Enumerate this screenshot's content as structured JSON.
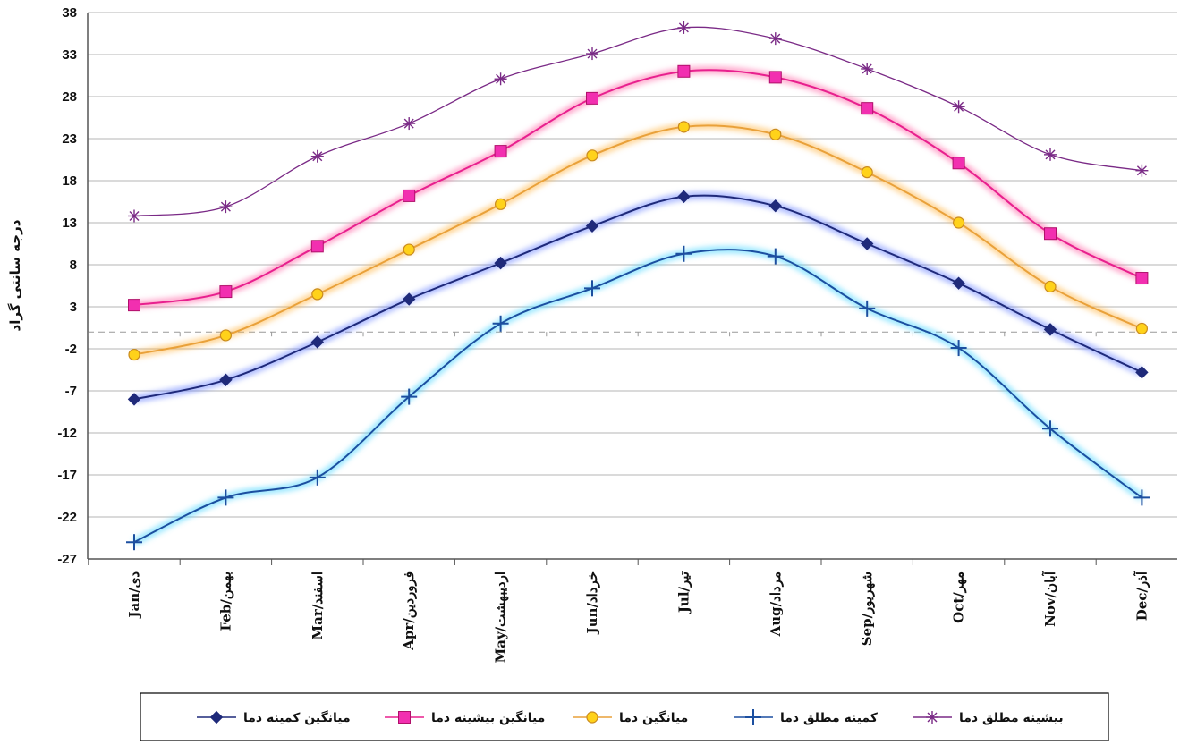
{
  "chart_data": {
    "type": "line",
    "ylabel": "درجه سانتی گراد",
    "xlabel": "",
    "ylim": [
      -27,
      38
    ],
    "y_ticks": [
      38,
      33,
      28,
      23,
      18,
      13,
      8,
      3,
      -2,
      -7,
      -12,
      -17,
      -22,
      -27
    ],
    "categories": [
      "Jan/دی",
      "Feb/بهمن",
      "Mar/اسفند",
      "Apr/فروردین",
      "May/اردیبهشت",
      "Jun/خرداد",
      "Jul/تیر",
      "Aug/مرداد",
      "Sep/شهریور",
      "Oct/مهر",
      "Nov/آبان",
      "Dec/آذر"
    ],
    "grid": true,
    "legend_position": "bottom",
    "series": [
      {
        "name": "میانگین کمینه دما",
        "color": "#1f2a7a",
        "glow": "#6f86ff",
        "marker": "diamond",
        "values": [
          -8,
          -5.7,
          -1.2,
          3.9,
          8.2,
          12.6,
          16.1,
          15,
          10.5,
          5.8,
          0.3,
          -4.8
        ]
      },
      {
        "name": "میانگین بیشینه دما",
        "color": "#e8208e",
        "glow": "#ff6aa8",
        "marker": "square",
        "values": [
          3.2,
          4.8,
          10.2,
          16.2,
          21.5,
          27.8,
          31,
          30.3,
          26.6,
          20.1,
          11.7,
          6.4
        ]
      },
      {
        "name": "میانگین دما",
        "color": "#e9a13a",
        "glow": "#ffb84d",
        "marker": "circle",
        "values": [
          -2.7,
          -0.4,
          4.5,
          9.8,
          15.2,
          21,
          24.4,
          23.5,
          19,
          13,
          5.4,
          0.4
        ]
      },
      {
        "name": "کمینه مطلق دما",
        "color": "#1c4fa0",
        "glow": "#4fd7ff",
        "marker": "plus",
        "values": [
          -25,
          -19.7,
          -17.3,
          -7.7,
          1,
          5.2,
          9.3,
          9,
          2.8,
          -1.9,
          -11.5,
          -19.7
        ]
      },
      {
        "name": "بیشینه مطلق دما",
        "color": "#7a2a86",
        "glow": null,
        "marker": "asterisk",
        "values": [
          13.8,
          14.9,
          20.9,
          24.8,
          30.1,
          33.1,
          36.2,
          34.9,
          31.3,
          26.8,
          21.1,
          19.2
        ]
      }
    ],
    "legend_order": [
      4,
      3,
      2,
      1,
      0
    ]
  }
}
